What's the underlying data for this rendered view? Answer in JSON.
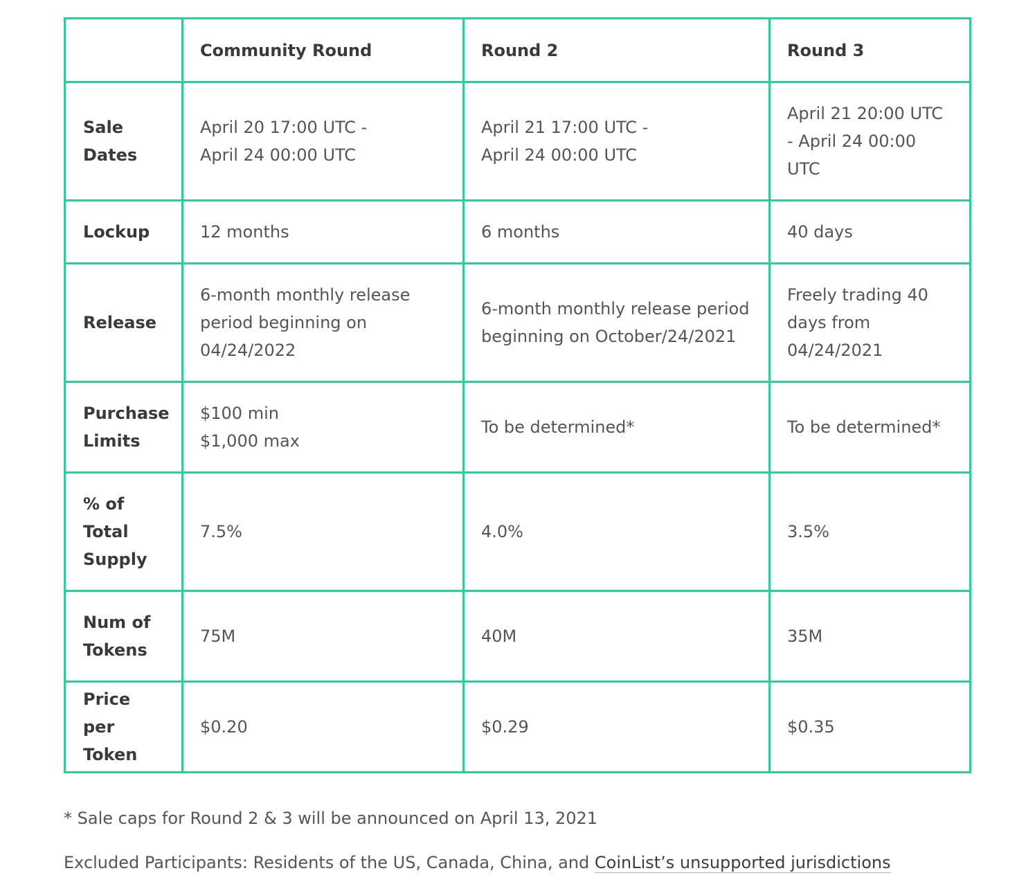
{
  "table": {
    "columns": [
      "",
      "Community Round",
      "Round 2",
      "Round 3"
    ],
    "rows": [
      {
        "label": "Sale\nDates",
        "cells": [
          "April 20 17:00 UTC -\nApril 24 00:00 UTC",
          "April 21 17:00 UTC -\nApril 24 00:00 UTC",
          "April 21 20:00 UTC - April 24 00:00 UTC"
        ]
      },
      {
        "label": "Lockup",
        "cells": [
          "12 months",
          "6 months",
          "40 days"
        ]
      },
      {
        "label": "Release",
        "cells": [
          "6-month monthly release period beginning on 04/24/2022",
          "6-month monthly release period beginning on October/24/2021",
          "Freely trading 40 days from 04/24/2021"
        ]
      },
      {
        "label": "Purchase Limits",
        "cells": [
          "$100 min\n$1,000 max",
          "To be determined*",
          "To be determined*"
        ]
      },
      {
        "label": "% of Total Supply",
        "cells": [
          "7.5%",
          "4.0%",
          "3.5%"
        ]
      },
      {
        "label": "Num of Tokens",
        "cells": [
          "75M",
          "40M",
          "35M"
        ]
      },
      {
        "label": "Price per Token",
        "cells": [
          "$0.20",
          "$0.29",
          "$0.35"
        ]
      }
    ]
  },
  "notes": {
    "caps": "* Sale caps for Round 2 & 3 will be announced on April 13, 2021",
    "excluded_prefix": "Excluded Participants: Residents of the US, Canada, China, and ",
    "excluded_link": "CoinList’s unsupported jurisdictions"
  }
}
